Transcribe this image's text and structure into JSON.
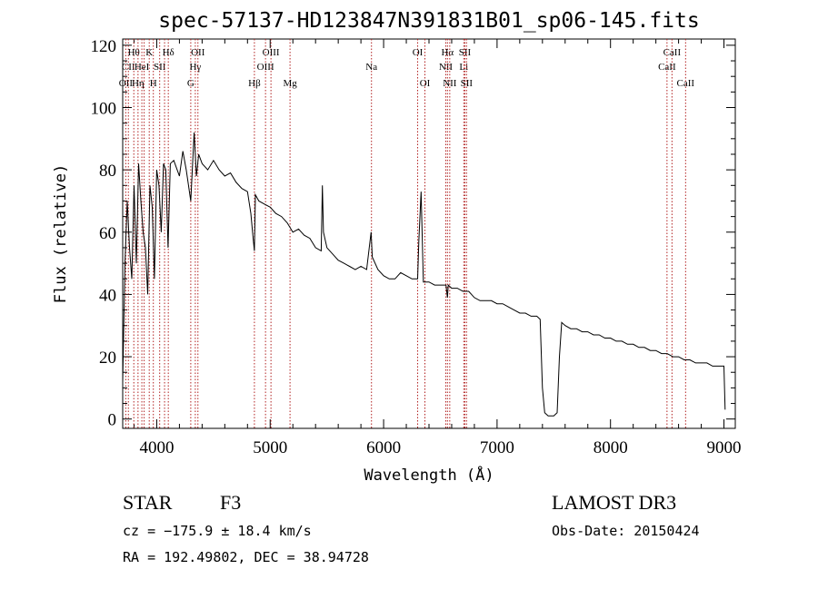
{
  "chart_data": {
    "type": "line",
    "title": "spec-57137-HD123847N391831B01_sp06-145.fits",
    "xlabel": "Wavelength (Å)",
    "ylabel": "Flux (relative)",
    "xlim": [
      3700,
      9100
    ],
    "ylim": [
      -3,
      122
    ],
    "xticks": [
      4000,
      5000,
      6000,
      7000,
      8000,
      9000
    ],
    "yticks": [
      0,
      20,
      40,
      60,
      80,
      100,
      120
    ],
    "series": [
      {
        "name": "flux",
        "x": [
          3700,
          3720,
          3740,
          3760,
          3780,
          3800,
          3820,
          3840,
          3860,
          3880,
          3900,
          3920,
          3940,
          3960,
          3980,
          4000,
          4020,
          4040,
          4060,
          4080,
          4100,
          4120,
          4150,
          4180,
          4200,
          4230,
          4260,
          4300,
          4330,
          4350,
          4370,
          4400,
          4450,
          4500,
          4550,
          4600,
          4650,
          4700,
          4750,
          4800,
          4830,
          4850,
          4861,
          4870,
          4900,
          4950,
          5000,
          5050,
          5100,
          5150,
          5200,
          5250,
          5300,
          5350,
          5400,
          5450,
          5460,
          5470,
          5500,
          5550,
          5600,
          5650,
          5700,
          5750,
          5800,
          5850,
          5890,
          5900,
          5950,
          6000,
          6050,
          6100,
          6150,
          6200,
          6250,
          6300,
          6310,
          6330,
          6350,
          6400,
          6450,
          6500,
          6550,
          6563,
          6570,
          6600,
          6650,
          6700,
          6750,
          6800,
          6850,
          6900,
          6950,
          7000,
          7050,
          7100,
          7150,
          7200,
          7250,
          7300,
          7350,
          7380,
          7400,
          7420,
          7450,
          7500,
          7530,
          7550,
          7570,
          7600,
          7650,
          7700,
          7750,
          7800,
          7850,
          7900,
          7950,
          8000,
          8050,
          8100,
          8150,
          8200,
          8250,
          8300,
          8350,
          8400,
          8450,
          8500,
          8550,
          8600,
          8650,
          8700,
          8750,
          8800,
          8850,
          8900,
          8950,
          9000,
          9010
        ],
        "y": [
          12,
          50,
          70,
          55,
          45,
          75,
          50,
          82,
          70,
          60,
          55,
          40,
          75,
          68,
          45,
          80,
          75,
          60,
          82,
          80,
          55,
          82,
          83,
          80,
          78,
          86,
          80,
          70,
          92,
          78,
          85,
          82,
          80,
          83,
          80,
          78,
          79,
          76,
          74,
          73,
          66,
          58,
          54,
          72,
          70,
          69,
          68,
          66,
          65,
          63,
          60,
          61,
          59,
          58,
          55,
          54,
          75,
          60,
          55,
          53,
          51,
          50,
          49,
          48,
          49,
          48,
          60,
          52,
          48,
          46,
          45,
          45,
          47,
          46,
          45,
          45,
          57,
          73,
          44,
          44,
          43,
          43,
          43,
          39,
          43,
          42,
          42,
          41,
          41,
          39,
          38,
          38,
          38,
          37,
          37,
          36,
          35,
          34,
          34,
          33,
          33,
          32,
          10,
          2,
          1,
          1,
          2,
          20,
          31,
          30,
          29,
          29,
          28,
          28,
          27,
          27,
          26,
          26,
          25,
          25,
          24,
          24,
          23,
          23,
          22,
          22,
          21,
          21,
          20,
          20,
          19,
          19,
          18,
          18,
          18,
          17,
          17,
          17,
          3
        ]
      }
    ],
    "lines": [
      {
        "w": 3727,
        "label": "OII",
        "row": 3
      },
      {
        "w": 3750,
        "label": "CII",
        "row": 2
      },
      {
        "w": 3798,
        "label": "Hθ",
        "row": 1
      },
      {
        "w": 3835,
        "label": "Hη",
        "row": 3
      },
      {
        "w": 3869,
        "label": "HeI",
        "row": 2
      },
      {
        "w": 3889,
        "label": "",
        "row": 0
      },
      {
        "w": 3934,
        "label": "K",
        "row": 1
      },
      {
        "w": 3970,
        "label": "H",
        "row": 3
      },
      {
        "w": 4026,
        "label": "SII",
        "row": 2
      },
      {
        "w": 4069,
        "label": "",
        "row": 0
      },
      {
        "w": 4102,
        "label": "Hδ",
        "row": 1
      },
      {
        "w": 4300,
        "label": "G",
        "row": 3
      },
      {
        "w": 4340,
        "label": "Hγ",
        "row": 2
      },
      {
        "w": 4363,
        "label": "OII",
        "row": 1
      },
      {
        "w": 4861,
        "label": "Hβ",
        "row": 3
      },
      {
        "w": 4959,
        "label": "OIII",
        "row": 2
      },
      {
        "w": 5007,
        "label": "OIII",
        "row": 1
      },
      {
        "w": 5175,
        "label": "Mg",
        "row": 3
      },
      {
        "w": 5893,
        "label": "Na",
        "row": 2
      },
      {
        "w": 6300,
        "label": "OI",
        "row": 1
      },
      {
        "w": 6364,
        "label": "OI",
        "row": 3
      },
      {
        "w": 6548,
        "label": "NII",
        "row": 2
      },
      {
        "w": 6563,
        "label": "Hα",
        "row": 1
      },
      {
        "w": 6583,
        "label": "NII",
        "row": 3
      },
      {
        "w": 6707,
        "label": "Li",
        "row": 2
      },
      {
        "w": 6716,
        "label": "SII",
        "row": 1
      },
      {
        "w": 6731,
        "label": "SII",
        "row": 3
      },
      {
        "w": 8498,
        "label": "CaII",
        "row": 2
      },
      {
        "w": 8542,
        "label": "CaII",
        "row": 1
      },
      {
        "w": 8662,
        "label": "CaII",
        "row": 3
      }
    ]
  },
  "info": {
    "type": "STAR",
    "subclass": "F3",
    "survey": "LAMOST DR3",
    "cz": "cz = −175.9 ± 18.4 km/s",
    "obs_date": "Obs-Date: 20150424",
    "radec": "RA = 192.49802, DEC =  38.94728"
  }
}
